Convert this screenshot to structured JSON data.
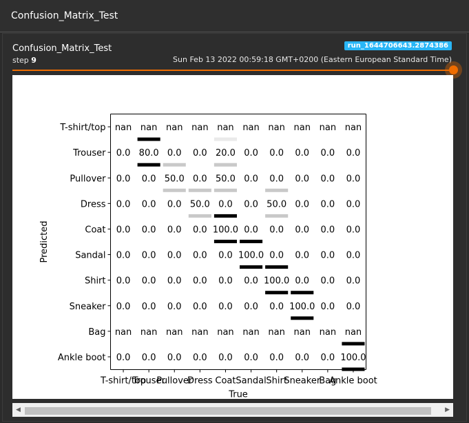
{
  "window": {
    "title": "Confusion_Matrix_Test"
  },
  "card": {
    "title": "Confusion_Matrix_Test",
    "step_label": "step",
    "step_value": "9",
    "run": "run_1644706643.2874386",
    "timestamp": "Sun Feb 13 2022 00:59:18 GMT+0200 (Eastern European Standard Time)"
  },
  "slider": {
    "position_fraction": 1.0
  },
  "scrollbar": {
    "left_arrow": "◀",
    "right_arrow": "▶"
  },
  "chart_data": {
    "type": "heatmap",
    "xlabel": "True",
    "ylabel": "Predicted",
    "x_categories": [
      "T-shirt/top",
      "Trouser",
      "Pullover",
      "Dress",
      "Coat",
      "Sandal",
      "Shirt",
      "Sneaker",
      "Bag",
      "Ankle boot"
    ],
    "y_categories": [
      "T-shirt/top",
      "Trouser",
      "Pullover",
      "Dress",
      "Coat",
      "Sandal",
      "Shirt",
      "Sneaker",
      "Bag",
      "Ankle boot"
    ],
    "values": [
      [
        "nan",
        "nan",
        "nan",
        "nan",
        "nan",
        "nan",
        "nan",
        "nan",
        "nan",
        "nan"
      ],
      [
        "0.0",
        "80.0",
        "0.0",
        "0.0",
        "20.0",
        "0.0",
        "0.0",
        "0.0",
        "0.0",
        "0.0"
      ],
      [
        "0.0",
        "0.0",
        "50.0",
        "0.0",
        "50.0",
        "0.0",
        "0.0",
        "0.0",
        "0.0",
        "0.0"
      ],
      [
        "0.0",
        "0.0",
        "0.0",
        "50.0",
        "0.0",
        "0.0",
        "50.0",
        "0.0",
        "0.0",
        "0.0"
      ],
      [
        "0.0",
        "0.0",
        "0.0",
        "0.0",
        "100.0",
        "0.0",
        "0.0",
        "0.0",
        "0.0",
        "0.0"
      ],
      [
        "0.0",
        "0.0",
        "0.0",
        "0.0",
        "0.0",
        "100.0",
        "0.0",
        "0.0",
        "0.0",
        "0.0"
      ],
      [
        "0.0",
        "0.0",
        "0.0",
        "0.0",
        "0.0",
        "0.0",
        "100.0",
        "0.0",
        "0.0",
        "0.0"
      ],
      [
        "0.0",
        "0.0",
        "0.0",
        "0.0",
        "0.0",
        "0.0",
        "0.0",
        "100.0",
        "0.0",
        "0.0"
      ],
      [
        "nan",
        "nan",
        "nan",
        "nan",
        "nan",
        "nan",
        "nan",
        "nan",
        "nan",
        "nan"
      ],
      [
        "0.0",
        "0.0",
        "0.0",
        "0.0",
        "0.0",
        "0.0",
        "0.0",
        "0.0",
        "0.0",
        "100.0"
      ]
    ]
  }
}
